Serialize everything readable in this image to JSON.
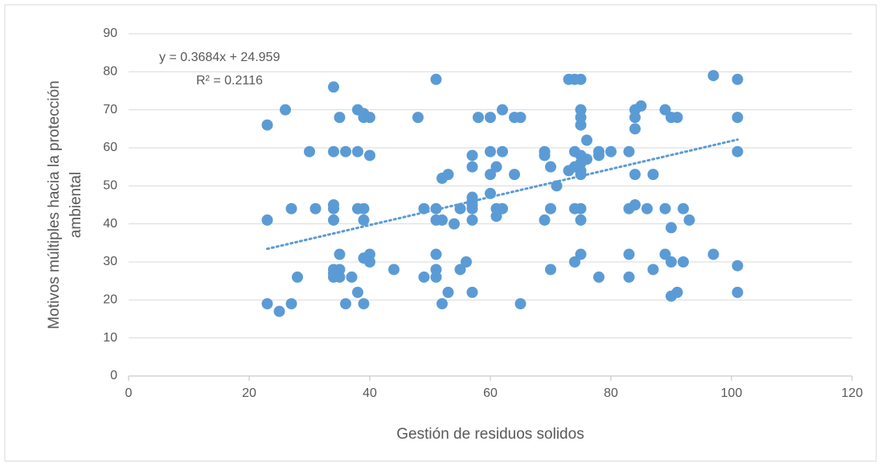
{
  "chart_data": {
    "type": "scatter",
    "xlabel": "Gestión de residuos solidos",
    "ylabel": [
      "Motivos múltiples hacia la protección",
      "ambiental"
    ],
    "annotations": [
      "y = 0.3684x + 24.959",
      "R² = 0.2116"
    ],
    "trendline": {
      "slope": 0.3684,
      "intercept": 24.959,
      "style": "dotted"
    },
    "color": "#5b9bd5",
    "xlim": [
      0,
      120
    ],
    "xticks": [
      0,
      20,
      40,
      60,
      80,
      100,
      120
    ],
    "ylim": [
      0,
      90
    ],
    "yticks": [
      0,
      10,
      20,
      30,
      40,
      50,
      60,
      70,
      80,
      90
    ],
    "grid": true,
    "x": [
      23,
      23,
      23,
      25,
      26,
      27,
      27,
      28,
      30,
      31,
      34,
      34,
      34,
      34,
      34,
      34,
      34,
      34,
      35,
      35,
      35,
      35,
      36,
      36,
      37,
      38,
      38,
      38,
      38,
      39,
      39,
      39,
      39,
      39,
      39,
      40,
      40,
      40,
      40,
      44,
      48,
      49,
      49,
      51,
      51,
      51,
      51,
      51,
      51,
      52,
      52,
      52,
      53,
      53,
      54,
      55,
      55,
      56,
      57,
      57,
      57,
      57,
      57,
      57,
      57,
      57,
      58,
      60,
      60,
      60,
      60,
      61,
      61,
      61,
      62,
      62,
      62,
      64,
      64,
      65,
      65,
      69,
      69,
      69,
      70,
      70,
      70,
      71,
      73,
      73,
      74,
      74,
      74,
      74,
      74,
      75,
      75,
      75,
      75,
      75,
      75,
      75,
      75,
      75,
      75,
      75,
      76,
      76,
      78,
      78,
      78,
      80,
      83,
      83,
      83,
      83,
      84,
      84,
      84,
      84,
      84,
      85,
      86,
      87,
      87,
      89,
      89,
      89,
      90,
      90,
      90,
      90,
      91,
      91,
      92,
      92,
      93,
      97,
      97,
      101,
      101,
      101,
      101,
      101
    ],
    "values": [
      66,
      41,
      19,
      17,
      70,
      44,
      19,
      26,
      59,
      44,
      76,
      59,
      45,
      44,
      41,
      28,
      27,
      26,
      68,
      32,
      28,
      26,
      59,
      19,
      26,
      70,
      59,
      44,
      22,
      69,
      68,
      44,
      41,
      31,
      19,
      68,
      58,
      32,
      30,
      28,
      68,
      44,
      26,
      78,
      44,
      41,
      32,
      28,
      26,
      52,
      41,
      19,
      53,
      22,
      40,
      44,
      28,
      30,
      58,
      55,
      47,
      46,
      45,
      44,
      41,
      22,
      68,
      68,
      59,
      53,
      48,
      55,
      44,
      42,
      70,
      59,
      44,
      68,
      53,
      68,
      19,
      59,
      58,
      41,
      55,
      44,
      28,
      50,
      78,
      54,
      78,
      59,
      55,
      44,
      30,
      78,
      70,
      68,
      66,
      58,
      56,
      54,
      53,
      44,
      41,
      32,
      62,
      57,
      59,
      58,
      26,
      59,
      59,
      44,
      32,
      26,
      70,
      68,
      65,
      53,
      45,
      71,
      44,
      53,
      28,
      70,
      44,
      32,
      68,
      39,
      30,
      21,
      68,
      22,
      44,
      30,
      41,
      79,
      32,
      78,
      68,
      59,
      29,
      22
    ]
  }
}
